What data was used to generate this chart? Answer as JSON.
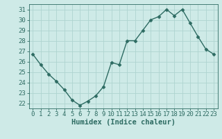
{
  "x": [
    0,
    1,
    2,
    3,
    4,
    5,
    6,
    7,
    8,
    9,
    10,
    11,
    12,
    13,
    14,
    15,
    16,
    17,
    18,
    19,
    20,
    21,
    22,
    23
  ],
  "y": [
    26.7,
    25.7,
    24.8,
    24.1,
    23.3,
    22.3,
    21.8,
    22.2,
    22.7,
    23.6,
    25.9,
    25.7,
    28.0,
    28.0,
    29.0,
    30.0,
    30.3,
    31.0,
    30.4,
    31.0,
    29.7,
    28.4,
    27.2,
    26.7
  ],
  "line_color": "#2d6b62",
  "marker": "D",
  "marker_size": 2.5,
  "bg_color": "#ceeae7",
  "plot_bg_color": "#ceeae7",
  "grid_color": "#aed4d0",
  "xlabel": "Humidex (Indice chaleur)",
  "ylim": [
    21.5,
    31.5
  ],
  "xlim": [
    -0.5,
    23.5
  ],
  "yticks": [
    22,
    23,
    24,
    25,
    26,
    27,
    28,
    29,
    30,
    31
  ],
  "xticks": [
    0,
    1,
    2,
    3,
    4,
    5,
    6,
    7,
    8,
    9,
    10,
    11,
    12,
    13,
    14,
    15,
    16,
    17,
    18,
    19,
    20,
    21,
    22,
    23
  ],
  "tick_label_color": "#2d6b62",
  "xlabel_color": "#2d6b62",
  "xlabel_fontsize": 7.5,
  "tick_fontsize": 6.5,
  "line_width": 1.0
}
